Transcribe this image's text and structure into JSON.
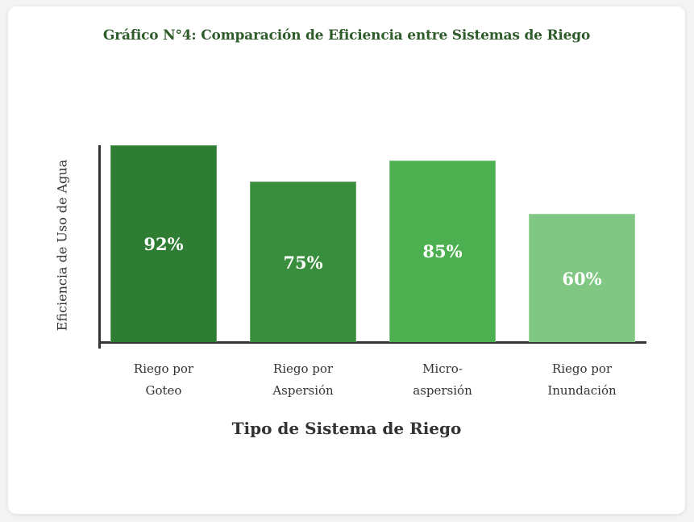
{
  "chart_data": {
    "type": "bar",
    "title": "Gráfico N°4: Comparación de Eficiencia entre Sistemas de Riego",
    "xlabel": "Tipo de Sistema de Riego",
    "ylabel": "Eficiencia de Uso de Agua",
    "categories": [
      "Riego por Goteo",
      "Riego por Aspersión",
      "Micro-aspersión",
      "Riego por Inundación"
    ],
    "category_lines": [
      [
        "Riego por",
        "Goteo"
      ],
      [
        "Riego por",
        "Aspersión"
      ],
      [
        "Micro-",
        "aspersión"
      ],
      [
        "Riego por",
        "Inundación"
      ]
    ],
    "values": [
      92,
      75,
      85,
      60
    ],
    "value_labels": [
      "92%",
      "75%",
      "85%",
      "60%"
    ],
    "colors": [
      "#2e7d32",
      "#388e3c",
      "#4caf50",
      "#81c784"
    ],
    "ylim": [
      0,
      100
    ],
    "grid": false,
    "legend": false
  },
  "colors": {
    "title": "#2e5b2a",
    "axis": "#333333",
    "text": "#333333",
    "card_bg": "#ffffff",
    "page_bg": "#f4f4f4"
  }
}
